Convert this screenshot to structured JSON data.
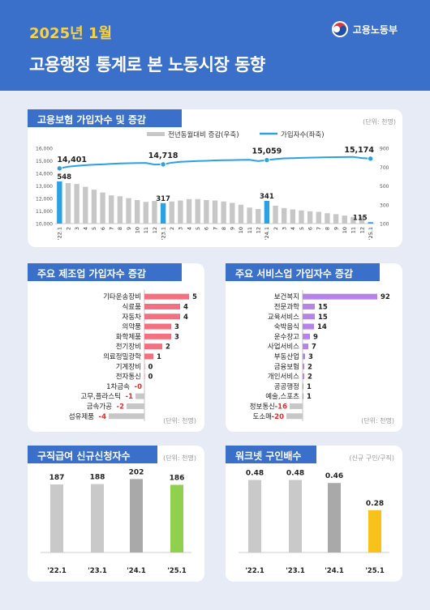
{
  "header": {
    "month": "2025년 1월",
    "title": "고용행정 통계로 본 노동시장 동향",
    "ministry": "고용노동부"
  },
  "colors": {
    "header_blue": "#3a70c9",
    "line_blue": "#2aa1e3",
    "bar_gray": "#c7c7c7",
    "manufacturing_red": "#f2707f",
    "service_purple": "#b783e9",
    "green": "#8fd14f",
    "yellow": "#f8c21a"
  },
  "chart_data": [
    {
      "type": "bar+line",
      "title": "고용보험 가입자수 및 증감",
      "unit": "(단위: 천명)",
      "legend": [
        "전년동월대비 증감(우축)",
        "가입자수(좌축)"
      ],
      "x": [
        "'22.1",
        "2",
        "3",
        "4",
        "5",
        "6",
        "7",
        "8",
        "9",
        "10",
        "11",
        "12",
        "'23.1",
        "2",
        "3",
        "4",
        "5",
        "6",
        "7",
        "8",
        "9",
        "10",
        "11",
        "12",
        "'24.1",
        "2",
        "3",
        "4",
        "5",
        "6",
        "7",
        "8",
        "9",
        "10",
        "11",
        "12",
        "'25.1"
      ],
      "series": [
        {
          "name": "가입자수(좌축)",
          "type": "line",
          "values": [
            14401,
            14530,
            14600,
            14650,
            14690,
            14720,
            14760,
            14790,
            14810,
            14820,
            14830,
            14700,
            14718,
            14850,
            14920,
            14950,
            14980,
            15000,
            15030,
            15050,
            15060,
            15070,
            15080,
            14980,
            15059,
            15140,
            15190,
            15210,
            15230,
            15250,
            15270,
            15280,
            15290,
            15300,
            15310,
            15220,
            15174
          ]
        },
        {
          "name": "전년동월대비 증감(우축)",
          "type": "bar",
          "values": [
            548,
            530,
            520,
            490,
            460,
            430,
            400,
            390,
            370,
            350,
            330,
            340,
            317,
            335,
            345,
            360,
            360,
            350,
            345,
            335,
            320,
            300,
            270,
            255,
            341,
            290,
            265,
            250,
            240,
            230,
            225,
            210,
            200,
            185,
            170,
            180,
            115
          ]
        }
      ],
      "highlight_indices": [
        0,
        12,
        24,
        36
      ],
      "labels": {
        "0": "14,401",
        "12": "14,718",
        "24": "15,059",
        "36": "15,174"
      },
      "bar_labels": {
        "0": "548",
        "12": "317",
        "24": "341",
        "36": "115"
      },
      "y_left": {
        "min": 10000,
        "max": 16000,
        "ticks": [
          "10,000",
          "11,000",
          "12,000",
          "13,000",
          "14,000",
          "15,000",
          "16,000"
        ]
      },
      "y_right": {
        "min": 100,
        "max": 900,
        "ticks": [
          "100",
          "300",
          "500",
          "700",
          "900"
        ]
      }
    },
    {
      "type": "bar",
      "title": "주요 제조업 가입자수 증감",
      "unit": "(단위: 천명)",
      "categories": [
        "기타운송장비",
        "식료품",
        "자동차",
        "의약품",
        "화학제품",
        "전기장비",
        "의료정밀광학",
        "기계장비",
        "전자통신",
        "1차금속",
        "고무,플라스틱",
        "금속가공",
        "섬유제품"
      ],
      "values": [
        5,
        4,
        4,
        3,
        3,
        2,
        1,
        0,
        0,
        0,
        -1,
        -2,
        -4
      ],
      "value_labels": [
        "5",
        "4",
        "4",
        "3",
        "3",
        "2",
        "1",
        "0",
        "0",
        "-0",
        "-1",
        "-2",
        "-4"
      ]
    },
    {
      "type": "bar",
      "title": "주요 서비스업 가입자수 증감",
      "unit": "(단위: 천명)",
      "categories": [
        "보건복지",
        "전문과학",
        "교육서비스",
        "숙박음식",
        "운수창고",
        "사업서비스",
        "부동산업",
        "금융보험",
        "개인서비스",
        "공공행정",
        "예술,스포츠",
        "정보통신",
        "도소매"
      ],
      "values": [
        92,
        15,
        15,
        14,
        9,
        7,
        3,
        2,
        2,
        1,
        1,
        -16,
        -20
      ]
    },
    {
      "type": "bar",
      "title": "구직급여 신규신청자수",
      "unit": "(단위: 천명)",
      "categories": [
        "'22.1",
        "'23.1",
        "'24.1",
        "'25.1"
      ],
      "values": [
        187,
        188,
        202,
        186
      ]
    },
    {
      "type": "bar",
      "title": "워크넷 구인배수",
      "unit": "(신규 구인/구직)",
      "categories": [
        "'22.1",
        "'23.1",
        "'24.1",
        "'25.1"
      ],
      "values": [
        0.48,
        0.48,
        0.46,
        0.28
      ],
      "value_labels": [
        "0.48",
        "0.48",
        "0.46",
        "0.28"
      ]
    }
  ]
}
